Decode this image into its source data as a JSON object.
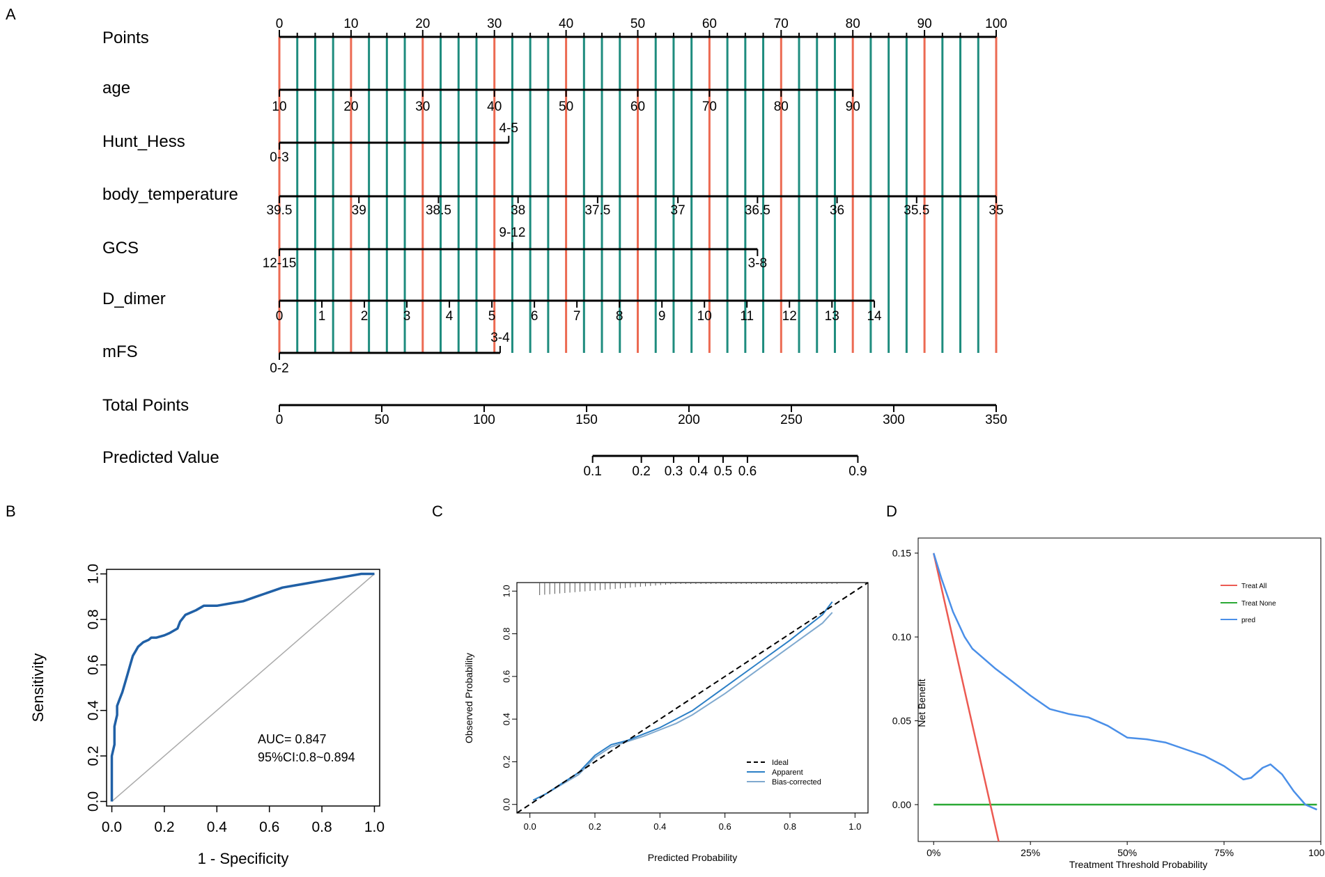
{
  "panels": {
    "a": "A",
    "b": "B",
    "c": "C",
    "d": "D"
  },
  "colors": {
    "red_line": "#ec6a52",
    "teal_line": "#1e8c7e",
    "roc": "#2060a6",
    "apparent": "#2b7fc6",
    "bias_corrected": "#7fa9cf",
    "treat_all": "#ec5a52",
    "treat_none": "#2aa935",
    "pred": "#4a8fe8"
  },
  "chart_data": [
    {
      "type": "nomogram",
      "panel": "A",
      "points_scale": {
        "min": 0,
        "max": 100,
        "labels": [
          0,
          10,
          20,
          30,
          40,
          50,
          60,
          70,
          80,
          90,
          100
        ]
      },
      "rows": [
        {
          "label": "Points"
        },
        {
          "label": "age",
          "ticks": [
            {
              "t": "10",
              "p": 0
            },
            {
              "t": "20",
              "p": 10
            },
            {
              "t": "30",
              "p": 20
            },
            {
              "t": "40",
              "p": 30
            },
            {
              "t": "50",
              "p": 40
            },
            {
              "t": "60",
              "p": 50
            },
            {
              "t": "70",
              "p": 60
            },
            {
              "t": "80",
              "p": 70
            },
            {
              "t": "90",
              "p": 80
            }
          ]
        },
        {
          "label": "Hunt_Hess",
          "ticks": [
            {
              "t": "0-3",
              "p": 0,
              "pos": "below"
            },
            {
              "t": "4-5",
              "p": 32,
              "pos": "above"
            }
          ]
        },
        {
          "label": "body_temperature",
          "ticks": [
            {
              "t": "39.5",
              "p": 0
            },
            {
              "t": "39",
              "p": 11.1
            },
            {
              "t": "38.5",
              "p": 22.2
            },
            {
              "t": "38",
              "p": 33.3
            },
            {
              "t": "37.5",
              "p": 44.4
            },
            {
              "t": "37",
              "p": 55.6
            },
            {
              "t": "36.5",
              "p": 66.7
            },
            {
              "t": "36",
              "p": 77.8
            },
            {
              "t": "35.5",
              "p": 88.9
            },
            {
              "t": "35",
              "p": 100
            }
          ]
        },
        {
          "label": "GCS",
          "ticks": [
            {
              "t": "12-15",
              "p": 0,
              "pos": "below"
            },
            {
              "t": "9-12",
              "p": 32.5,
              "pos": "above"
            },
            {
              "t": "3-8",
              "p": 66.7,
              "pos": "below"
            }
          ]
        },
        {
          "label": "D_dimer",
          "ticks": [
            {
              "t": "0",
              "p": 0
            },
            {
              "t": "1",
              "p": 5.93
            },
            {
              "t": "2",
              "p": 11.86
            },
            {
              "t": "3",
              "p": 17.79
            },
            {
              "t": "4",
              "p": 23.72
            },
            {
              "t": "5",
              "p": 29.65
            },
            {
              "t": "6",
              "p": 35.58
            },
            {
              "t": "7",
              "p": 41.51
            },
            {
              "t": "8",
              "p": 47.44
            },
            {
              "t": "9",
              "p": 53.37
            },
            {
              "t": "10",
              "p": 59.3
            },
            {
              "t": "11",
              "p": 65.23
            },
            {
              "t": "12",
              "p": 71.16
            },
            {
              "t": "13",
              "p": 77.09
            },
            {
              "t": "14",
              "p": 83
            }
          ]
        },
        {
          "label": "mFS",
          "ticks": [
            {
              "t": "0-2",
              "p": 0,
              "pos": "below"
            },
            {
              "t": "3-4",
              "p": 30.8,
              "pos": "above"
            }
          ]
        },
        {
          "label": "Total Points",
          "ticks": [
            {
              "t": "0",
              "p": 0
            },
            {
              "t": "50",
              "p": 14.29
            },
            {
              "t": "100",
              "p": 28.57
            },
            {
              "t": "150",
              "p": 42.86
            },
            {
              "t": "200",
              "p": 57.14
            },
            {
              "t": "250",
              "p": 71.43
            },
            {
              "t": "300",
              "p": 85.71
            },
            {
              "t": "350",
              "p": 100
            }
          ]
        },
        {
          "label": "Predicted Value",
          "ticks": [
            {
              "t": "0.1",
              "p": 43.7
            },
            {
              "t": "0.2",
              "p": 50.5
            },
            {
              "t": "0.3",
              "p": 55
            },
            {
              "t": "0.4",
              "p": 58.5
            },
            {
              "t": "0.5",
              "p": 61.9
            },
            {
              "t": "0.6",
              "p": 65.3
            },
            {
              "t": "0.9",
              "p": 80.7
            }
          ]
        }
      ]
    },
    {
      "type": "line",
      "panel": "B",
      "title": "",
      "xlabel": "1 - Specificity",
      "ylabel": "Sensitivity",
      "xlim": [
        -0.02,
        1.02
      ],
      "ylim": [
        -0.02,
        1.02
      ],
      "xticks": [
        "0.0",
        "0.2",
        "0.4",
        "0.6",
        "0.8",
        "1.0"
      ],
      "yticks": [
        "0.0",
        "0.2",
        "0.4",
        "0.6",
        "0.8",
        "1.0"
      ],
      "annotations": [
        "AUC= 0.847",
        "95%CI:0.8~0.894"
      ],
      "series": [
        {
          "name": "ROC",
          "x": [
            0,
            0,
            0.01,
            0.01,
            0.02,
            0.02,
            0.03,
            0.04,
            0.05,
            0.06,
            0.07,
            0.08,
            0.09,
            0.1,
            0.12,
            0.14,
            0.15,
            0.17,
            0.2,
            0.22,
            0.25,
            0.26,
            0.28,
            0.3,
            0.32,
            0.35,
            0.4,
            0.45,
            0.5,
            0.55,
            0.6,
            0.65,
            0.7,
            0.75,
            0.8,
            0.85,
            0.9,
            0.95,
            1.0
          ],
          "y": [
            0,
            0.2,
            0.25,
            0.33,
            0.38,
            0.42,
            0.45,
            0.48,
            0.52,
            0.56,
            0.6,
            0.64,
            0.66,
            0.68,
            0.7,
            0.71,
            0.72,
            0.72,
            0.73,
            0.74,
            0.76,
            0.79,
            0.82,
            0.83,
            0.84,
            0.86,
            0.86,
            0.87,
            0.88,
            0.9,
            0.92,
            0.94,
            0.95,
            0.96,
            0.97,
            0.98,
            0.99,
            1.0,
            1.0
          ]
        },
        {
          "name": "diagonal",
          "x": [
            0,
            1
          ],
          "y": [
            0,
            1
          ]
        }
      ]
    },
    {
      "type": "line",
      "panel": "C",
      "xlabel": "Predicted Probability",
      "ylabel": "Observed Probability",
      "xlim": [
        -0.04,
        1.04
      ],
      "ylim": [
        -0.04,
        1.04
      ],
      "xticks": [
        "0.0",
        "0.2",
        "0.4",
        "0.6",
        "0.8",
        "1.0"
      ],
      "yticks": [
        "0.0",
        "0.2",
        "0.4",
        "0.6",
        "0.8",
        "1.0"
      ],
      "legend": [
        "Ideal",
        "Apparent",
        "Bias-corrected"
      ],
      "series": [
        {
          "name": "Ideal",
          "x": [
            -0.04,
            1.04
          ],
          "y": [
            -0.04,
            1.04
          ]
        },
        {
          "name": "Apparent",
          "x": [
            0.01,
            0.05,
            0.1,
            0.15,
            0.2,
            0.25,
            0.3,
            0.35,
            0.4,
            0.45,
            0.5,
            0.6,
            0.7,
            0.8,
            0.9,
            0.93
          ],
          "y": [
            0.02,
            0.05,
            0.1,
            0.15,
            0.23,
            0.28,
            0.3,
            0.33,
            0.36,
            0.4,
            0.44,
            0.55,
            0.66,
            0.77,
            0.89,
            0.95
          ]
        },
        {
          "name": "Bias-corrected",
          "x": [
            0.01,
            0.05,
            0.1,
            0.15,
            0.2,
            0.25,
            0.3,
            0.35,
            0.4,
            0.45,
            0.5,
            0.6,
            0.7,
            0.8,
            0.9,
            0.93
          ],
          "y": [
            0.02,
            0.05,
            0.095,
            0.14,
            0.22,
            0.27,
            0.295,
            0.32,
            0.35,
            0.38,
            0.42,
            0.52,
            0.63,
            0.74,
            0.85,
            0.9
          ]
        }
      ]
    },
    {
      "type": "line",
      "panel": "D",
      "xlabel": "Treatment Threshold Probability",
      "ylabel": "Net Benefit",
      "xlim": [
        -0.04,
        1.0
      ],
      "ylim": [
        -0.022,
        0.159
      ],
      "xticks": [
        "0%",
        "25%",
        "50%",
        "75%",
        "100%"
      ],
      "yticks": [
        "0.00",
        "0.05",
        "0.10",
        "0.15"
      ],
      "legend": [
        "Treat All",
        "Treat None",
        "pred"
      ],
      "series": [
        {
          "name": "Treat All",
          "x": [
            0,
            0.168
          ],
          "y": [
            0.15,
            -0.022
          ]
        },
        {
          "name": "Treat None",
          "x": [
            0,
            0.99
          ],
          "y": [
            0,
            0
          ]
        },
        {
          "name": "pred",
          "x": [
            0,
            0.02,
            0.05,
            0.08,
            0.1,
            0.13,
            0.16,
            0.2,
            0.25,
            0.3,
            0.35,
            0.4,
            0.45,
            0.5,
            0.55,
            0.6,
            0.65,
            0.7,
            0.75,
            0.8,
            0.82,
            0.85,
            0.87,
            0.9,
            0.93,
            0.96,
            0.99
          ],
          "y": [
            0.15,
            0.135,
            0.115,
            0.1,
            0.093,
            0.087,
            0.081,
            0.074,
            0.065,
            0.057,
            0.054,
            0.052,
            0.047,
            0.04,
            0.039,
            0.037,
            0.033,
            0.029,
            0.023,
            0.015,
            0.016,
            0.022,
            0.024,
            0.018,
            0.008,
            0.0,
            -0.003
          ]
        }
      ]
    }
  ]
}
